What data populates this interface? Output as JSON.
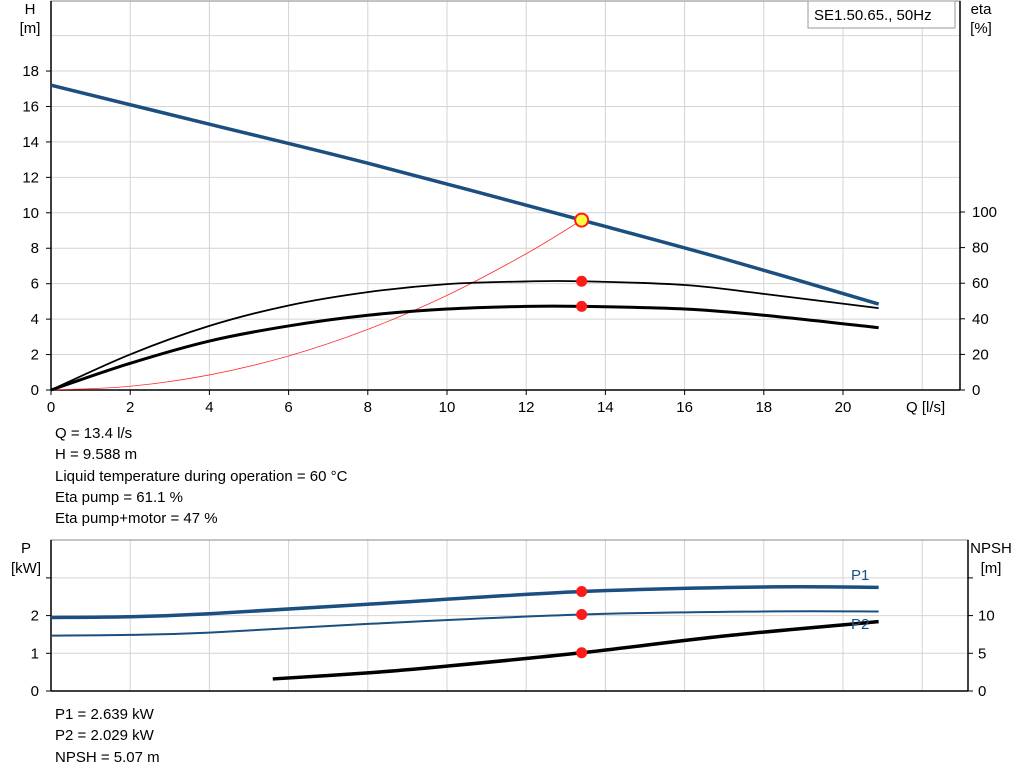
{
  "chart_data": [
    {
      "type": "line",
      "legend_box": "SE1.50.65., 50Hz",
      "xlabel": "Q [l/s]",
      "ylabel_left": [
        "H",
        "[m]"
      ],
      "ylabel_right": [
        "eta",
        "[%]"
      ],
      "xlim": [
        0,
        23
      ],
      "ylim_left": [
        0,
        22
      ],
      "ylim_right": [
        0,
        123.6
      ],
      "x_ticks": [
        0,
        2,
        4,
        6,
        8,
        10,
        12,
        14,
        16,
        18,
        20
      ],
      "y_ticks_left": [
        0,
        2,
        4,
        6,
        8,
        10,
        12,
        14,
        16,
        18
      ],
      "y_ticks_right": [
        0,
        20,
        40,
        60,
        80,
        100
      ],
      "grid": true,
      "colors": {
        "head": "#1a4f80",
        "system": "#ff3030",
        "eta": "#000000",
        "marker": "#ff1a1a",
        "duty_point": "#ffff40"
      },
      "series": [
        {
          "key": "head",
          "axis": "left",
          "x": [
            0,
            4,
            8,
            13.4,
            17,
            20.9
          ],
          "y": [
            17.2,
            15.0,
            12.8,
            9.588,
            7.4,
            4.85
          ]
        },
        {
          "key": "system",
          "axis": "left",
          "x": [
            0,
            2,
            4,
            6,
            8,
            10,
            12,
            13.4
          ],
          "y": [
            0,
            0.21,
            0.85,
            1.92,
            3.42,
            5.34,
            7.69,
            9.588
          ]
        },
        {
          "key": "eta_pump",
          "axis": "right",
          "x": [
            0,
            2,
            4,
            6,
            8,
            10,
            12,
            13.4,
            16,
            18,
            20.9
          ],
          "y": [
            0,
            20,
            36,
            47.5,
            55,
            59.5,
            61,
            61.1,
            59,
            54,
            46
          ]
        },
        {
          "key": "eta_total",
          "axis": "right",
          "x": [
            0,
            2,
            4,
            6,
            8,
            10,
            12,
            13.4,
            16,
            18,
            20.9
          ],
          "y": [
            0,
            15,
            27.5,
            36,
            42,
            45.5,
            47,
            47,
            45.5,
            42,
            35
          ]
        }
      ],
      "duty_point": {
        "Q": 13.4,
        "H": 9.588,
        "eta_pump": 61.1,
        "eta_total": 47
      }
    },
    {
      "type": "line",
      "ylabel_left": [
        "P",
        "[kW]"
      ],
      "ylabel_right": [
        "NPSH",
        "[m]"
      ],
      "xlim": [
        0,
        23.2
      ],
      "ylim_left": [
        0,
        4
      ],
      "ylim_right": [
        0,
        20
      ],
      "y_ticks_left": [
        0,
        1,
        2
      ],
      "y_ticks_right": [
        0,
        5,
        10
      ],
      "grid": true,
      "series": [
        {
          "key": "P1",
          "name": "P1",
          "axis": "left",
          "color": "#1a4f80",
          "x": [
            0,
            2,
            4,
            8,
            13.4,
            18,
            20.9
          ],
          "y": [
            1.95,
            1.97,
            2.05,
            2.3,
            2.639,
            2.76,
            2.75
          ]
        },
        {
          "key": "P2",
          "name": "P2",
          "axis": "left",
          "color": "#1a4f80",
          "x": [
            0,
            2,
            4,
            8,
            13.4,
            18,
            20.9
          ],
          "y": [
            1.47,
            1.49,
            1.55,
            1.78,
            2.029,
            2.11,
            2.11
          ]
        },
        {
          "key": "NPSH",
          "axis": "right",
          "color": "#000000",
          "x": [
            5.6,
            8,
            10,
            13.4,
            17,
            20.9
          ],
          "y": [
            1.6,
            2.4,
            3.3,
            5.07,
            7.3,
            9.2
          ]
        }
      ],
      "duty_point": {
        "Q": 13.4,
        "P1": 2.639,
        "P2": 2.029,
        "NPSH": 5.07
      }
    }
  ],
  "info_top": [
    "Q = 13.4 l/s",
    "H = 9.588 m",
    "Liquid temperature during operation = 60 °C",
    "Eta pump = 61.1 %",
    "Eta pump+motor = 47 %"
  ],
  "info_bottom": [
    "P1 = 2.639 kW",
    "P2 = 2.029 kW",
    "NPSH = 5.07 m"
  ]
}
